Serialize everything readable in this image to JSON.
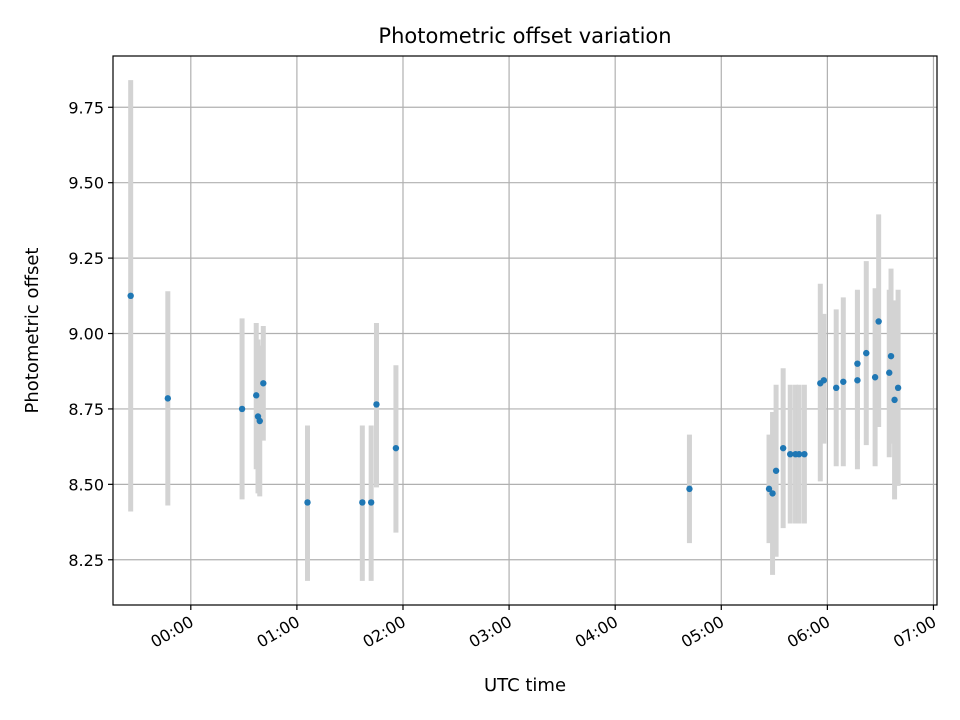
{
  "chart_data": {
    "type": "scatter",
    "title": "Photometric offset variation",
    "xlabel": "UTC time",
    "ylabel": "Photometric offset",
    "xlim": [
      "-00:34",
      "07:00"
    ],
    "ylim": [
      8.1,
      9.92
    ],
    "x_ticks": [
      "00:00",
      "01:00",
      "02:00",
      "03:00",
      "04:00",
      "05:00",
      "06:00",
      "07:00"
    ],
    "y_ticks": [
      8.25,
      8.5,
      8.75,
      9.0,
      9.25,
      9.5,
      9.75
    ],
    "grid": true,
    "marker_color": "#1f77b4",
    "errorbar_color": "#d3d3d3",
    "points": [
      {
        "x": "-00:34",
        "y": 9.125,
        "ylow": 8.41,
        "yhigh": 9.84
      },
      {
        "x": "-00:13",
        "y": 8.785,
        "ylow": 8.43,
        "yhigh": 9.14
      },
      {
        "x": "00:29",
        "y": 8.75,
        "ylow": 8.45,
        "yhigh": 9.05
      },
      {
        "x": "00:37",
        "y": 8.795,
        "ylow": 8.55,
        "yhigh": 9.035
      },
      {
        "x": "00:38",
        "y": 8.725,
        "ylow": 8.47,
        "yhigh": 8.98
      },
      {
        "x": "00:39",
        "y": 8.71,
        "ylow": 8.46,
        "yhigh": 8.96
      },
      {
        "x": "00:41",
        "y": 8.835,
        "ylow": 8.645,
        "yhigh": 9.025
      },
      {
        "x": "01:06",
        "y": 8.44,
        "ylow": 8.18,
        "yhigh": 8.695
      },
      {
        "x": "01:37",
        "y": 8.44,
        "ylow": 8.18,
        "yhigh": 8.695
      },
      {
        "x": "01:42",
        "y": 8.44,
        "ylow": 8.18,
        "yhigh": 8.695
      },
      {
        "x": "01:45",
        "y": 8.765,
        "ylow": 8.49,
        "yhigh": 9.035
      },
      {
        "x": "01:56",
        "y": 8.62,
        "ylow": 8.34,
        "yhigh": 8.895
      },
      {
        "x": "04:42",
        "y": 8.485,
        "ylow": 8.305,
        "yhigh": 8.665
      },
      {
        "x": "05:27",
        "y": 8.485,
        "ylow": 8.305,
        "yhigh": 8.665
      },
      {
        "x": "05:29",
        "y": 8.47,
        "ylow": 8.2,
        "yhigh": 8.74
      },
      {
        "x": "05:31",
        "y": 8.545,
        "ylow": 8.26,
        "yhigh": 8.83
      },
      {
        "x": "05:35",
        "y": 8.62,
        "ylow": 8.355,
        "yhigh": 8.885
      },
      {
        "x": "05:39",
        "y": 8.6,
        "ylow": 8.37,
        "yhigh": 8.83
      },
      {
        "x": "05:42",
        "y": 8.6,
        "ylow": 8.37,
        "yhigh": 8.83
      },
      {
        "x": "05:44",
        "y": 8.6,
        "ylow": 8.37,
        "yhigh": 8.83
      },
      {
        "x": "05:47",
        "y": 8.6,
        "ylow": 8.37,
        "yhigh": 8.83
      },
      {
        "x": "05:56",
        "y": 8.835,
        "ylow": 8.51,
        "yhigh": 9.165
      },
      {
        "x": "05:58",
        "y": 8.845,
        "ylow": 8.635,
        "yhigh": 9.065
      },
      {
        "x": "06:05",
        "y": 8.82,
        "ylow": 8.56,
        "yhigh": 9.08
      },
      {
        "x": "06:09",
        "y": 8.84,
        "ylow": 8.56,
        "yhigh": 9.12
      },
      {
        "x": "06:17",
        "y": 8.9,
        "ylow": 8.65,
        "yhigh": 9.145
      },
      {
        "x": "06:17",
        "y": 8.845,
        "ylow": 8.55,
        "yhigh": 9.14
      },
      {
        "x": "06:22",
        "y": 8.935,
        "ylow": 8.63,
        "yhigh": 9.24
      },
      {
        "x": "06:27",
        "y": 8.855,
        "ylow": 8.56,
        "yhigh": 9.15
      },
      {
        "x": "06:29",
        "y": 9.04,
        "ylow": 8.69,
        "yhigh": 9.395
      },
      {
        "x": "06:35",
        "y": 8.87,
        "ylow": 8.59,
        "yhigh": 9.145
      },
      {
        "x": "06:36",
        "y": 8.925,
        "ylow": 8.635,
        "yhigh": 9.215
      },
      {
        "x": "06:38",
        "y": 8.78,
        "ylow": 8.45,
        "yhigh": 9.11
      },
      {
        "x": "06:40",
        "y": 8.82,
        "ylow": 8.495,
        "yhigh": 9.145
      }
    ]
  }
}
